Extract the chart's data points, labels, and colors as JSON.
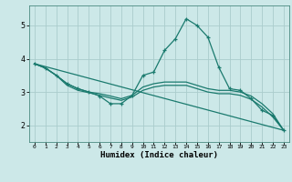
{
  "bg_color": "#cce8e8",
  "grid_color": "#aacccc",
  "line_color": "#1a7a6e",
  "xlabel": "Humidex (Indice chaleur)",
  "xlim": [
    -0.5,
    23.5
  ],
  "ylim": [
    1.5,
    5.6
  ],
  "yticks": [
    2,
    3,
    4,
    5
  ],
  "xticks": [
    0,
    1,
    2,
    3,
    4,
    5,
    6,
    7,
    8,
    9,
    10,
    11,
    12,
    13,
    14,
    15,
    16,
    17,
    18,
    19,
    20,
    21,
    22,
    23
  ],
  "series": [
    {
      "x": [
        0,
        1,
        2,
        3,
        4,
        5,
        6,
        7,
        8,
        9,
        10,
        11,
        12,
        13,
        14,
        15,
        16,
        17,
        18,
        19,
        20,
        21,
        22,
        23
      ],
      "y": [
        3.85,
        3.72,
        3.5,
        3.25,
        3.1,
        3.0,
        2.88,
        2.65,
        2.65,
        2.9,
        3.5,
        3.6,
        4.25,
        4.6,
        5.2,
        5.0,
        4.65,
        3.75,
        3.1,
        3.05,
        2.8,
        2.45,
        2.3,
        1.85
      ],
      "markers": true
    },
    {
      "x": [
        0,
        1,
        2,
        3,
        4,
        5,
        6,
        7,
        8,
        9,
        10,
        11,
        12,
        13,
        14,
        15,
        16,
        17,
        18,
        19,
        20,
        21,
        22,
        23
      ],
      "y": [
        3.85,
        3.72,
        3.5,
        3.25,
        3.1,
        3.0,
        2.95,
        2.88,
        2.8,
        2.9,
        3.15,
        3.25,
        3.3,
        3.3,
        3.3,
        3.2,
        3.1,
        3.05,
        3.05,
        3.0,
        2.88,
        2.65,
        2.35,
        1.85
      ],
      "markers": false
    },
    {
      "x": [
        0,
        1,
        2,
        3,
        4,
        5,
        6,
        7,
        8,
        9,
        10,
        11,
        12,
        13,
        14,
        15,
        16,
        17,
        18,
        19,
        20,
        21,
        22,
        23
      ],
      "y": [
        3.85,
        3.72,
        3.5,
        3.2,
        3.05,
        2.98,
        2.9,
        2.82,
        2.75,
        2.85,
        3.05,
        3.15,
        3.2,
        3.2,
        3.2,
        3.1,
        3.0,
        2.95,
        2.95,
        2.9,
        2.78,
        2.55,
        2.25,
        1.85
      ],
      "markers": false
    },
    {
      "x": [
        0,
        23
      ],
      "y": [
        3.85,
        1.85
      ],
      "markers": false
    }
  ]
}
